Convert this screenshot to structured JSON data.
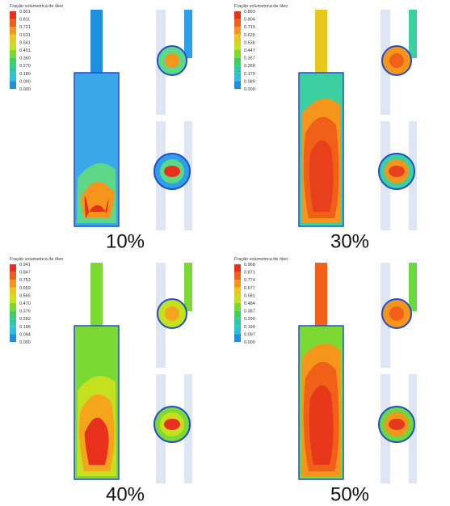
{
  "panels": [
    {
      "legend_title": "Fração volumetrica de óleo",
      "legend_ticks": [
        "0.901",
        "0.811",
        "0.721",
        "0.631",
        "0.541",
        "0.451",
        "0.360",
        "0.270",
        "0.180",
        "0.090",
        "0.000"
      ],
      "caption": "10%"
    },
    {
      "legend_title": "Fração volumetrica de óleo",
      "legend_ticks": [
        "0.893",
        "0.804",
        "0.715",
        "0.625",
        "0.536",
        "0.447",
        "0.357",
        "0.268",
        "0.179",
        "0.089",
        "0.000"
      ],
      "caption": "30%"
    },
    {
      "legend_title": "Fração volumetrica de óleo",
      "legend_ticks": [
        "0.941",
        "0.847",
        "0.753",
        "0.659",
        "0.565",
        "0.470",
        "0.376",
        "0.282",
        "0.188",
        "0.094",
        "0.000"
      ],
      "caption": "40%"
    },
    {
      "legend_title": "Fração volumetrica de óleo",
      "legend_ticks": [
        "0.968",
        "0.871",
        "0.774",
        "0.677",
        "0.581",
        "0.484",
        "0.387",
        "0.290",
        "0.194",
        "0.097",
        "0.000"
      ],
      "caption": "50%"
    }
  ]
}
